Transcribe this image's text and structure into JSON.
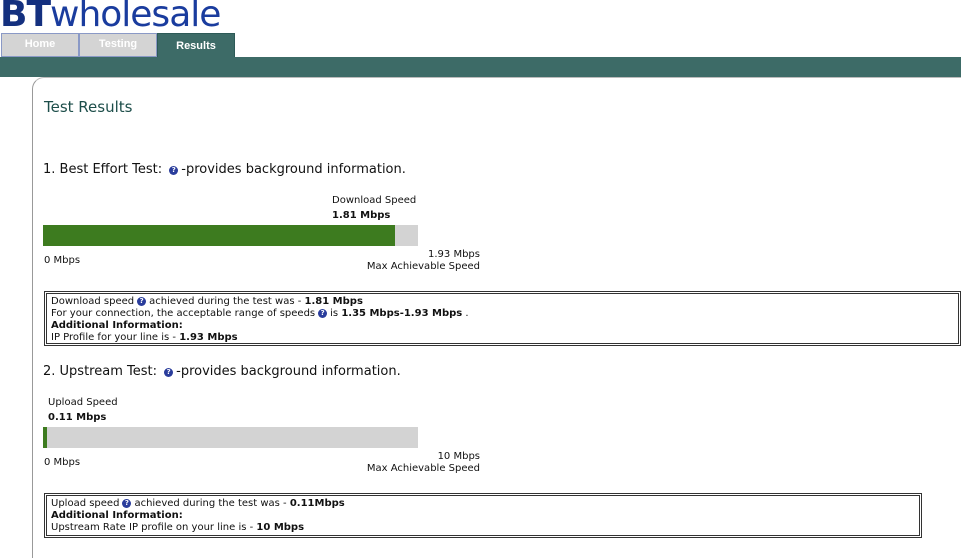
{
  "header": {
    "logo_bt": "BT",
    "logo_text": "wholesale"
  },
  "tabs": [
    "Home",
    "Testing",
    "Results"
  ],
  "page_title": "Test Results",
  "sections": [
    {
      "heading": "1. Best Effort Test:",
      "heading_suffix": "-provides background information.",
      "speed_label": "Download Speed",
      "speed_value": "1.81 Mbps",
      "value": 1.81,
      "max": 1.93,
      "min_label": "0 Mbps",
      "max_label": "1.93 Mbps",
      "max_caption": "Max Achievable Speed",
      "info": {
        "speed_text": "Download speed",
        "speed_after": "achieved during the test was -",
        "speed_value": "1.81 Mbps",
        "range_text": "For your connection, the acceptable range of speeds",
        "range_after": "is",
        "range_value": "1.35 Mbps-1.93 Mbps",
        "range_end": ".",
        "additional": "Additional Information:",
        "profile_text": "IP Profile for your line is -",
        "profile_value": "1.93 Mbps"
      }
    },
    {
      "heading": "2. Upstream Test:",
      "heading_suffix": "-provides background information.",
      "speed_label": "Upload Speed",
      "speed_value": "0.11 Mbps",
      "value": 0.11,
      "max": 10,
      "min_label": "0 Mbps",
      "max_label": "10 Mbps",
      "max_caption": "Max Achievable Speed",
      "info": {
        "speed_text": "Upload speed",
        "speed_after": "achieved during the test was -",
        "speed_value": "0.11Mbps",
        "additional": "Additional Information:",
        "profile_text": "Upstream Rate IP profile on your line is -",
        "profile_value": "10 Mbps"
      }
    }
  ]
}
